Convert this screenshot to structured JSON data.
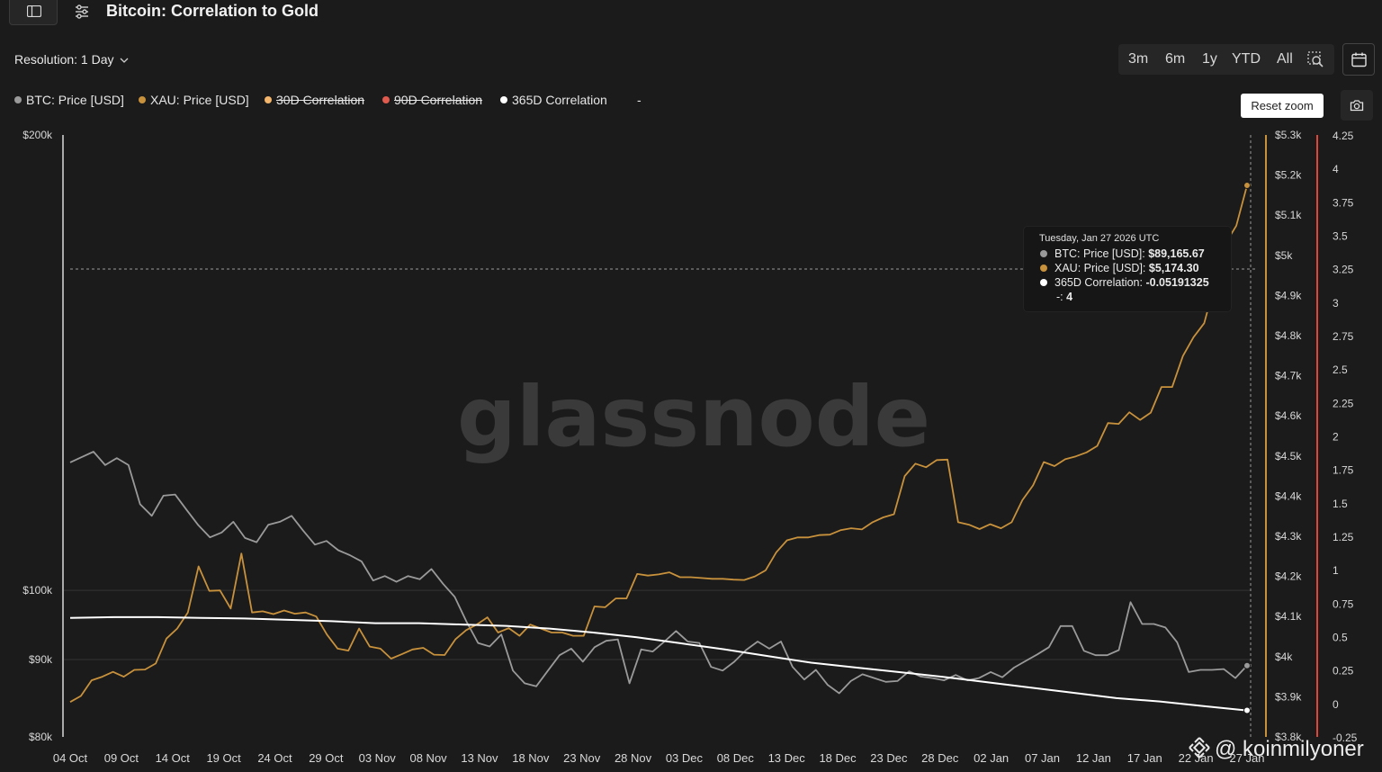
{
  "header": {
    "title": "Bitcoin: Correlation to Gold"
  },
  "resolution": {
    "label": "Resolution: 1 Day"
  },
  "ranges": [
    "3m",
    "6m",
    "1y",
    "YTD",
    "All"
  ],
  "legend": [
    {
      "label": "BTC: Price [USD]",
      "color": "#9a9a9a",
      "active": true
    },
    {
      "label": "XAU: Price [USD]",
      "color": "#c8913c",
      "active": true
    },
    {
      "label": "30D Correlation",
      "color": "#f2b56b",
      "active": false
    },
    {
      "label": "90D Correlation",
      "color": "#e05a4e",
      "active": false
    },
    {
      "label": "365D Correlation",
      "color": "#ffffff",
      "active": true
    },
    {
      "label": "-",
      "color": "#ff3b30",
      "active": true
    }
  ],
  "reset_zoom": "Reset zoom",
  "tooltip": {
    "date": "Tuesday, Jan 27 2026 UTC",
    "rows": [
      {
        "name": "BTC: Price [USD]:",
        "value": "$89,165.67",
        "color": "#9a9a9a"
      },
      {
        "name": "XAU: Price [USD]:",
        "value": "$5,174.30",
        "color": "#c8913c"
      },
      {
        "name": "365D Correlation:",
        "value": "-0.05191325",
        "color": "#ffffff"
      },
      {
        "name": "-:",
        "value": "4",
        "color": ""
      }
    ]
  },
  "watermark": {
    "brand": "glassnode",
    "credit": "@ koinmilyoner"
  },
  "chart_data": {
    "type": "line",
    "x_ticks": [
      "04 Oct",
      "09 Oct",
      "14 Oct",
      "19 Oct",
      "24 Oct",
      "29 Oct",
      "03 Nov",
      "08 Nov",
      "13 Nov",
      "18 Nov",
      "23 Nov",
      "28 Nov",
      "03 Dec",
      "08 Dec",
      "13 Dec",
      "18 Dec",
      "23 Dec",
      "28 Dec",
      "02 Jan",
      "07 Jan",
      "12 Jan",
      "17 Jan",
      "22 Jan",
      "27 Jan"
    ],
    "y_left": {
      "scale": "log",
      "ticks": [
        "$200k",
        "$100k",
        "$90k",
        "$80k"
      ],
      "tick_values": [
        200000,
        100000,
        90000,
        80000
      ],
      "range": [
        80000,
        200000
      ]
    },
    "y_gold": {
      "ticks": [
        "$5.3k",
        "$5.2k",
        "$5.1k",
        "$5k",
        "$4.9k",
        "$4.8k",
        "$4.7k",
        "$4.6k",
        "$4.5k",
        "$4.4k",
        "$4.3k",
        "$4.2k",
        "$4.1k",
        "$4k",
        "$3.9k",
        "$3.8k"
      ],
      "range": [
        3800,
        5300
      ]
    },
    "y_corr": {
      "ticks": [
        "4.25",
        "4",
        "3.75",
        "3.5",
        "3.25",
        "3",
        "2.75",
        "2.5",
        "2.25",
        "2",
        "1.75",
        "1.5",
        "1.25",
        "1",
        "0.75",
        "0.5",
        "0.25",
        "0",
        "-0.25"
      ],
      "range": [
        -0.25,
        4.25
      ]
    },
    "series": [
      {
        "name": "BTC: Price [USD]",
        "axis": "left",
        "color": "#9a9a9a",
        "values": [
          121500,
          122500,
          123500,
          121000,
          122300,
          121000,
          114000,
          112000,
          115500,
          115700,
          113000,
          110400,
          108400,
          109200,
          111000,
          108300,
          107600,
          110500,
          111000,
          112000,
          109500,
          107200,
          107800,
          106300,
          105500,
          104500,
          101500,
          102200,
          101300,
          102200,
          101700,
          103300,
          101000,
          99000,
          95400,
          92300,
          91800,
          93500,
          88500,
          86800,
          86400,
          88500,
          90600,
          91500,
          89700,
          91700,
          92600,
          92800,
          86800,
          91400,
          91100,
          92500,
          94000,
          92500,
          92300,
          89000,
          88500,
          89700,
          91300,
          92500,
          91500,
          92500,
          89000,
          87300,
          88600,
          86600,
          85500,
          87100,
          88000,
          87500,
          87000,
          87100,
          88400,
          87700,
          87500,
          87200,
          87900,
          87200,
          87500,
          88300,
          87600,
          88900,
          89800,
          90700,
          91700,
          94700,
          94700,
          91200,
          90600,
          90600,
          91300,
          98200,
          95000,
          95000,
          94500,
          92400,
          88300,
          88600,
          88600,
          88700,
          87500,
          89165.67
        ]
      },
      {
        "name": "XAU: Price [USD]",
        "axis": "gold",
        "color": "#c8913c",
        "values": [
          3887,
          3902,
          3941,
          3950,
          3962,
          3950,
          3967,
          3968,
          3983,
          4045,
          4070,
          4110,
          4225,
          4164,
          4165,
          4120,
          4257,
          4110,
          4113,
          4106,
          4115,
          4107,
          4110,
          4100,
          4055,
          4020,
          4015,
          4070,
          4025,
          4020,
          3995,
          4006,
          4018,
          4022,
          4005,
          4004,
          4043,
          4066,
          4080,
          4098,
          4060,
          4071,
          4052,
          4080,
          4070,
          4060,
          4060,
          4052,
          4052,
          4125,
          4123,
          4145,
          4145,
          4206,
          4202,
          4205,
          4210,
          4198,
          4198,
          4196,
          4194,
          4194,
          4192,
          4191,
          4200,
          4215,
          4260,
          4290,
          4297,
          4297,
          4303,
          4304,
          4315,
          4320,
          4317,
          4335,
          4347,
          4355,
          4450,
          4481,
          4472,
          4490,
          4491,
          4335,
          4329,
          4318,
          4330,
          4320,
          4335,
          4390,
          4427,
          4485,
          4475,
          4492,
          4499,
          4509,
          4525,
          4582,
          4580,
          4609,
          4590,
          4608,
          4672,
          4672,
          4749,
          4796,
          4831,
          4930,
          5030,
          5074,
          5174.3
        ]
      },
      {
        "name": "365D Correlation",
        "axis": "corr",
        "color": "#ffffff",
        "values": [
          0.64,
          0.645,
          0.645,
          0.64,
          0.635,
          0.625,
          0.615,
          0.6,
          0.6,
          0.59,
          0.58,
          0.56,
          0.53,
          0.495,
          0.45,
          0.405,
          0.355,
          0.305,
          0.27,
          0.235,
          0.2,
          0.16,
          0.12,
          0.08,
          0.04,
          0.015,
          -0.02,
          -0.05191325
        ]
      }
    ]
  }
}
